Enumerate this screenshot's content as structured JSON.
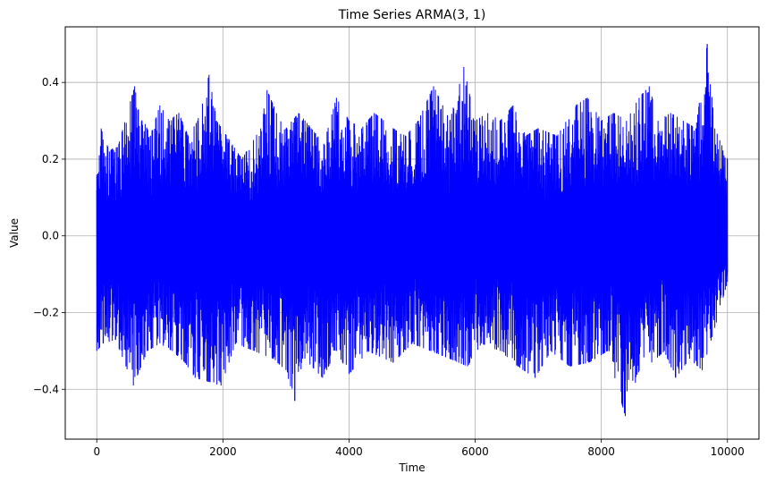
{
  "chart_data": {
    "type": "line",
    "title": "Time Series ARMA(3, 1)",
    "xlabel": "Time",
    "ylabel": "Value",
    "xlim": [
      -500,
      10500
    ],
    "ylim": [
      -0.53,
      0.545
    ],
    "x_ticks": [
      0,
      2000,
      4000,
      6000,
      8000,
      10000
    ],
    "y_ticks": [
      -0.4,
      -0.2,
      0.0,
      0.2,
      0.4
    ],
    "x_tick_labels": [
      "0",
      "2000",
      "4000",
      "6000",
      "8000",
      "10000"
    ],
    "y_tick_labels": [
      "−0.4",
      "−0.2",
      "0.0",
      "0.2",
      "0.4"
    ],
    "grid": true,
    "line_color": "#0000ff",
    "series": [
      {
        "x_start": 0,
        "x_end": 10000,
        "n_points": 10000,
        "approx_std": 0.1,
        "upper_envelope": [
          [
            0,
            0.16
          ],
          [
            40,
            0.21
          ],
          [
            70,
            0.28
          ],
          [
            200,
            0.22
          ],
          [
            350,
            0.24
          ],
          [
            600,
            0.39
          ],
          [
            660,
            0.33
          ],
          [
            850,
            0.26
          ],
          [
            1000,
            0.34
          ],
          [
            1150,
            0.3
          ],
          [
            1300,
            0.32
          ],
          [
            1450,
            0.26
          ],
          [
            1600,
            0.3
          ],
          [
            1780,
            0.42
          ],
          [
            1900,
            0.3
          ],
          [
            2100,
            0.25
          ],
          [
            2300,
            0.2
          ],
          [
            2600,
            0.28
          ],
          [
            2700,
            0.38
          ],
          [
            2850,
            0.32
          ],
          [
            3000,
            0.28
          ],
          [
            3200,
            0.32
          ],
          [
            3400,
            0.28
          ],
          [
            3600,
            0.24
          ],
          [
            3800,
            0.36
          ],
          [
            4000,
            0.3
          ],
          [
            4200,
            0.28
          ],
          [
            4400,
            0.32
          ],
          [
            4700,
            0.28
          ],
          [
            4900,
            0.26
          ],
          [
            5100,
            0.3
          ],
          [
            5340,
            0.39
          ],
          [
            5600,
            0.3
          ],
          [
            5820,
            0.44
          ],
          [
            6000,
            0.3
          ],
          [
            6200,
            0.32
          ],
          [
            6400,
            0.3
          ],
          [
            6600,
            0.34
          ],
          [
            6800,
            0.26
          ],
          [
            7000,
            0.28
          ],
          [
            7300,
            0.26
          ],
          [
            7600,
            0.34
          ],
          [
            7780,
            0.36
          ],
          [
            8000,
            0.3
          ],
          [
            8200,
            0.32
          ],
          [
            8400,
            0.3
          ],
          [
            8600,
            0.36
          ],
          [
            8760,
            0.39
          ],
          [
            8900,
            0.3
          ],
          [
            9100,
            0.32
          ],
          [
            9300,
            0.3
          ],
          [
            9500,
            0.28
          ],
          [
            9680,
            0.5
          ],
          [
            9800,
            0.28
          ],
          [
            10000,
            0.2
          ]
        ],
        "lower_envelope": [
          [
            0,
            -0.3
          ],
          [
            100,
            -0.28
          ],
          [
            300,
            -0.27
          ],
          [
            580,
            -0.39
          ],
          [
            800,
            -0.3
          ],
          [
            1000,
            -0.28
          ],
          [
            1200,
            -0.3
          ],
          [
            1400,
            -0.33
          ],
          [
            1560,
            -0.37
          ],
          [
            1780,
            -0.38
          ],
          [
            1970,
            -0.39
          ],
          [
            2200,
            -0.28
          ],
          [
            2500,
            -0.3
          ],
          [
            2800,
            -0.32
          ],
          [
            3000,
            -0.35
          ],
          [
            3140,
            -0.43
          ],
          [
            3300,
            -0.32
          ],
          [
            3580,
            -0.37
          ],
          [
            3800,
            -0.3
          ],
          [
            4000,
            -0.36
          ],
          [
            4300,
            -0.3
          ],
          [
            4700,
            -0.33
          ],
          [
            5000,
            -0.28
          ],
          [
            5300,
            -0.3
          ],
          [
            5600,
            -0.32
          ],
          [
            5880,
            -0.34
          ],
          [
            6100,
            -0.28
          ],
          [
            6400,
            -0.3
          ],
          [
            6680,
            -0.34
          ],
          [
            6950,
            -0.37
          ],
          [
            7200,
            -0.3
          ],
          [
            7500,
            -0.34
          ],
          [
            7800,
            -0.33
          ],
          [
            8100,
            -0.3
          ],
          [
            8380,
            -0.47
          ],
          [
            8600,
            -0.35
          ],
          [
            8800,
            -0.33
          ],
          [
            9000,
            -0.3
          ],
          [
            9180,
            -0.37
          ],
          [
            9400,
            -0.32
          ],
          [
            9600,
            -0.35
          ],
          [
            9800,
            -0.24
          ],
          [
            10000,
            -0.12
          ]
        ]
      }
    ]
  }
}
